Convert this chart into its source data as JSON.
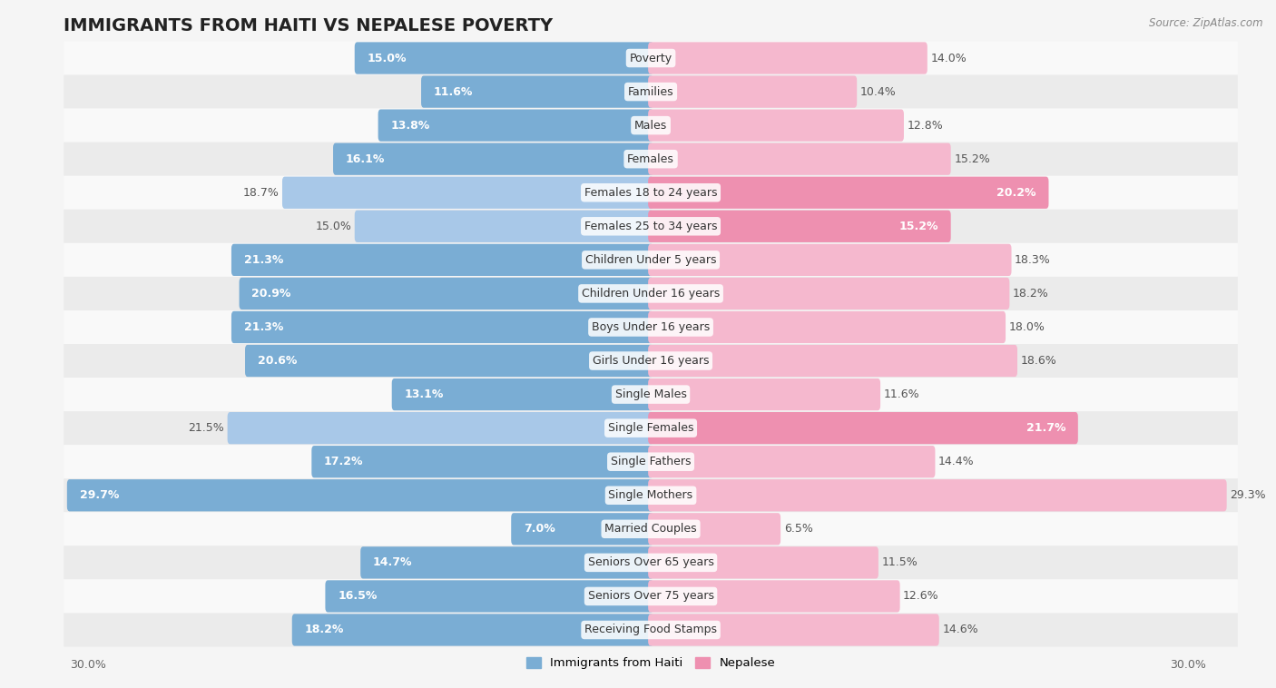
{
  "title": "IMMIGRANTS FROM HAITI VS NEPALESE POVERTY",
  "source": "Source: ZipAtlas.com",
  "categories": [
    "Poverty",
    "Families",
    "Males",
    "Females",
    "Females 18 to 24 years",
    "Females 25 to 34 years",
    "Children Under 5 years",
    "Children Under 16 years",
    "Boys Under 16 years",
    "Girls Under 16 years",
    "Single Males",
    "Single Females",
    "Single Fathers",
    "Single Mothers",
    "Married Couples",
    "Seniors Over 65 years",
    "Seniors Over 75 years",
    "Receiving Food Stamps"
  ],
  "haiti_values": [
    15.0,
    11.6,
    13.8,
    16.1,
    18.7,
    15.0,
    21.3,
    20.9,
    21.3,
    20.6,
    13.1,
    21.5,
    17.2,
    29.7,
    7.0,
    14.7,
    16.5,
    18.2
  ],
  "nepal_values": [
    14.0,
    10.4,
    12.8,
    15.2,
    20.2,
    15.2,
    18.3,
    18.2,
    18.0,
    18.6,
    11.6,
    21.7,
    14.4,
    29.3,
    6.5,
    11.5,
    12.6,
    14.6
  ],
  "haiti_color_light": "#a8c8e8",
  "haiti_color_dark": "#7aadd4",
  "nepal_color_light": "#f5b8ce",
  "nepal_color_dark": "#ee90b0",
  "row_color_light": "#f9f9f9",
  "row_color_dark": "#ebebeb",
  "background_color": "#f5f5f5",
  "xlim": 30.0,
  "legend_label_haiti": "Immigrants from Haiti",
  "legend_label_nepal": "Nepalese",
  "title_fontsize": 14,
  "label_fontsize": 9,
  "value_fontsize": 9,
  "axis_label_fontsize": 9
}
